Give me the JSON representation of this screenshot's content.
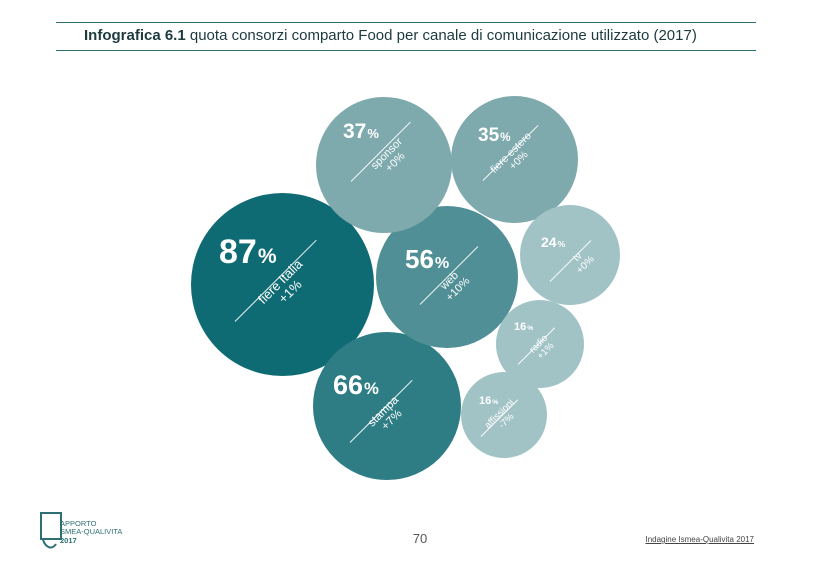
{
  "header": {
    "title_bold": "Infografica 6.1",
    "title_rest": "quota consorzi comparto Food per canale di comunicazione utilizzato (2017)"
  },
  "bubbles": [
    {
      "id": "fiere-italia",
      "percent": "87",
      "unit": "%",
      "label": "fiere Italia",
      "change": "+1%",
      "color": "#0e6b73"
    },
    {
      "id": "stampa",
      "percent": "66",
      "unit": "%",
      "label": "stampa",
      "change": "+7%",
      "color": "#2e7d84"
    },
    {
      "id": "web",
      "percent": "56",
      "unit": "%",
      "label": "web",
      "change": "+10%",
      "color": "#4f8f95"
    },
    {
      "id": "sponsor",
      "percent": "37",
      "unit": "%",
      "label": "sponsor",
      "change": "+0%",
      "color": "#7ea9ad"
    },
    {
      "id": "fiere-estero",
      "percent": "35",
      "unit": "%",
      "label": "fiere estero",
      "change": "+0%",
      "color": "#7ea9ad"
    },
    {
      "id": "tv",
      "percent": "24",
      "unit": "%",
      "label": "tv",
      "change": "+0%",
      "color": "#a2c3c6"
    },
    {
      "id": "radio",
      "percent": "16",
      "unit": "%",
      "label": "radio",
      "change": "+1%",
      "color": "#a2c3c6"
    },
    {
      "id": "affissioni",
      "percent": "16",
      "unit": "%",
      "label": "affissioni",
      "change": "-7%",
      "color": "#a2c3c6"
    }
  ],
  "footer": {
    "page_number": "70",
    "source": "Indagine Ismea-Qualivita 2017",
    "logo_line1": "APPORTO",
    "logo_line2": "SMEA-QUALIVITA",
    "logo_line3": "2017"
  }
}
